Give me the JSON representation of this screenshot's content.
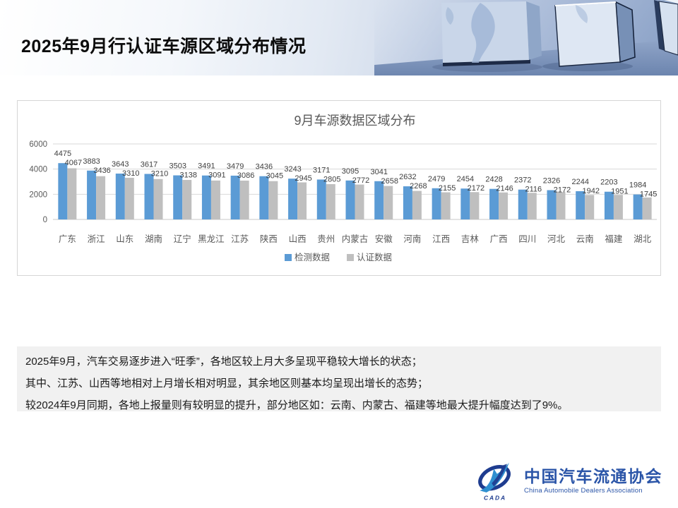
{
  "header": {
    "title": "2025年9月行认证车源区域分布情况"
  },
  "chart_data": {
    "type": "bar",
    "title": "9月车源数据区域分布",
    "categories": [
      "广东",
      "浙江",
      "山东",
      "湖南",
      "辽宁",
      "黑龙江",
      "江苏",
      "陕西",
      "山西",
      "贵州",
      "内蒙古",
      "安徽",
      "河南",
      "江西",
      "吉林",
      "广西",
      "四川",
      "河北",
      "云南",
      "福建",
      "湖北"
    ],
    "series": [
      {
        "name": "检测数据",
        "color": "#5B9BD5",
        "values": [
          4475,
          3883,
          3643,
          3617,
          3503,
          3491,
          3479,
          3436,
          3243,
          3171,
          3095,
          3041,
          2632,
          2479,
          2454,
          2428,
          2372,
          2326,
          2244,
          2203,
          1984
        ]
      },
      {
        "name": "认证数据",
        "color": "#BFBFBF",
        "values": [
          4067,
          3436,
          3310,
          3210,
          3138,
          3091,
          3086,
          3045,
          2945,
          2805,
          2772,
          2658,
          2268,
          2155,
          2172,
          2146,
          2116,
          2172,
          1942,
          1951,
          1745
        ]
      }
    ],
    "xlabel": "",
    "ylabel": "",
    "ylim": [
      0,
      6000
    ],
    "yticks": [
      0,
      2000,
      4000,
      6000
    ],
    "grid": true,
    "legend_position": "bottom",
    "colors": {
      "grid_line": "#D9D9D9",
      "axis_line": "#C9C9C9",
      "axis_text": "#595959",
      "title_text": "#595959",
      "data_label": "#404040"
    }
  },
  "summary": {
    "lines": [
      "2025年9月，汽车交易逐步进入“旺季”，各地区较上月大多呈现平稳较大增长的状态；",
      "其中、江苏、山西等地相对上月增长相对明显，其余地区则基本均呈现出增长的态势；",
      "较2024年9月同期，各地上报量则有较明显的提升，部分地区如：云南、内蒙古、福建等地最大提升幅度达到了9%。"
    ]
  },
  "footer": {
    "logo_mark": "CADA",
    "logo_cn": "中国汽车流通协会",
    "logo_en": "China Automobile Dealers Association",
    "brand_color": "#1E3C8F",
    "brand_light_blue": "#2E8FD0"
  }
}
